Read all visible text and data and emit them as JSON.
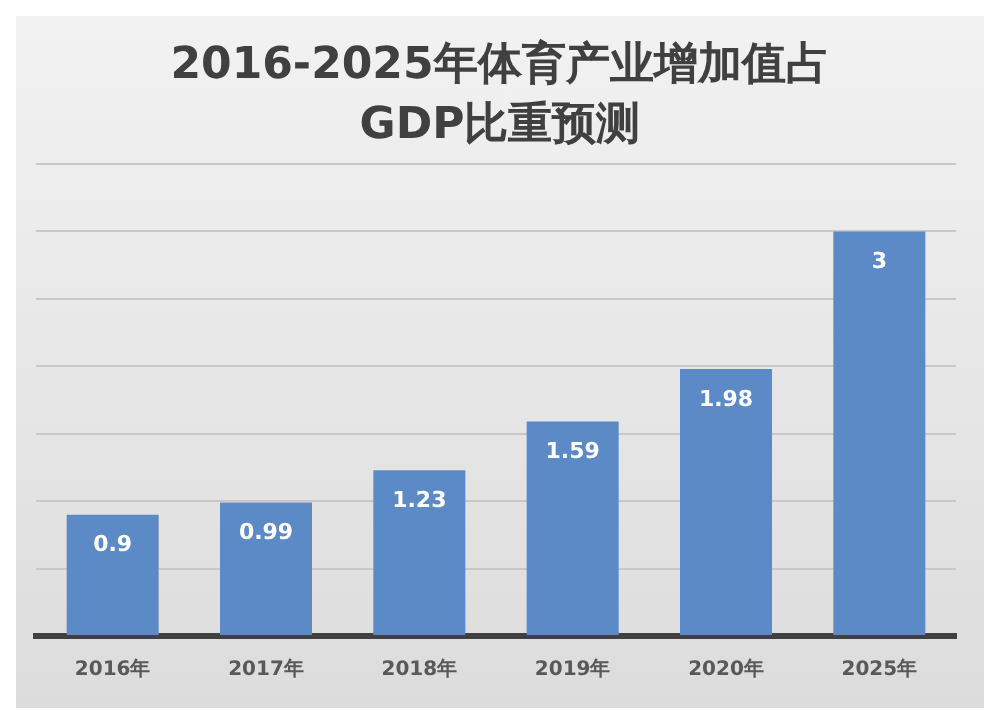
{
  "chart_data": {
    "type": "bar",
    "title": "2016-2025年体育产业增加值占GDP比重预测",
    "categories": [
      "2016年",
      "2017年",
      "2018年",
      "2019年",
      "2020年",
      "2025年"
    ],
    "values": [
      0.9,
      0.99,
      1.23,
      1.59,
      1.98,
      3
    ],
    "color": "#5b8ac6",
    "data_labels": true,
    "grid": "y",
    "tick_labels": "x",
    "ylim": [
      0,
      3.5
    ],
    "yticks": [
      {
        "value": 0,
        "label": null
      },
      {
        "value": 0.5,
        "label": null
      },
      {
        "value": 1,
        "label": null
      },
      {
        "value": 1.5,
        "label": null
      },
      {
        "value": 2,
        "label": null
      },
      {
        "value": 2.5,
        "label": null
      },
      {
        "value": 3,
        "label": null
      },
      {
        "value": 3.5,
        "label": null
      }
    ]
  }
}
